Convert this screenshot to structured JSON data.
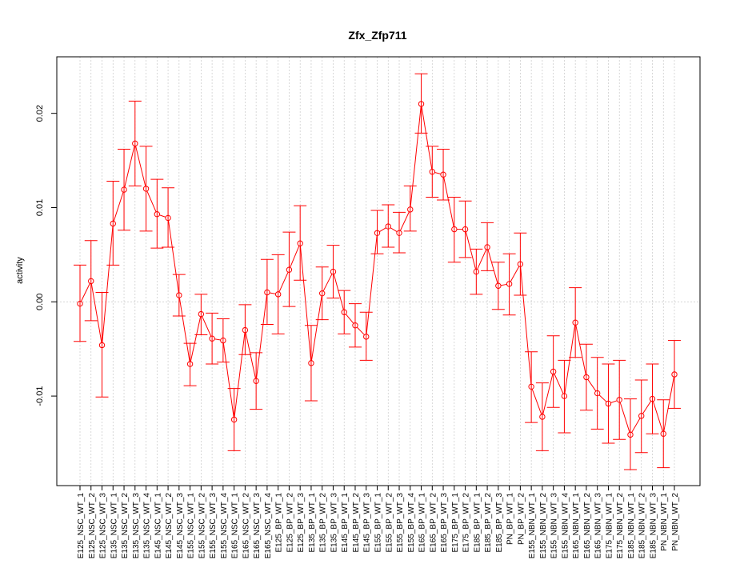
{
  "chart_data": {
    "type": "line",
    "title": "Zfx_Zfp711",
    "xlabel": "",
    "ylabel": "activity",
    "ylim": [
      -0.0195,
      0.026
    ],
    "yticks": [
      -0.01,
      0.0,
      0.01,
      0.02
    ],
    "ytick_labels": [
      "-0.01",
      "0.00",
      "0.01",
      "0.02"
    ],
    "grid": true,
    "colors": {
      "series": "#ff0000",
      "grid": "#c8c8c8",
      "axis": "#000000"
    },
    "categories": [
      "E125_NSC_WT_1",
      "E125_NSC_WT_2",
      "E125_NSC_WT_3",
      "E135_NSC_WT_1",
      "E135_NSC_WT_2",
      "E135_NSC_WT_3",
      "E135_NSC_WT_4",
      "E145_NSC_WT_1",
      "E145_NSC_WT_2",
      "E145_NSC_WT_3",
      "E155_NSC_WT_1",
      "E155_NSC_WT_2",
      "E155_NSC_WT_3",
      "E155_NSC_WT_4",
      "E165_NSC_WT_1",
      "E165_NSC_WT_2",
      "E165_NSC_WT_3",
      "E165_NSC_WT_4",
      "E125_BP_WT_1",
      "E125_BP_WT_2",
      "E125_BP_WT_3",
      "E135_BP_WT_1",
      "E135_BP_WT_2",
      "E135_BP_WT_3",
      "E145_BP_WT_1",
      "E145_BP_WT_2",
      "E145_BP_WT_3",
      "E155_BP_WT_1",
      "E155_BP_WT_2",
      "E155_BP_WT_3",
      "E155_BP_WT_4",
      "E165_BP_WT_1",
      "E165_BP_WT_2",
      "E165_BP_WT_3",
      "E175_BP_WT_1",
      "E175_BP_WT_2",
      "E185_BP_WT_1",
      "E185_BP_WT_2",
      "E185_BP_WT_3",
      "PN_BP_WT_1",
      "PN_BP_WT_2",
      "E155_NBN_WT_1",
      "E155_NBN_WT_2",
      "E155_NBN_WT_3",
      "E155_NBN_WT_4",
      "E165_NBN_WT_1",
      "E165_NBN_WT_2",
      "E165_NBN_WT_3",
      "E175_NBN_WT_1",
      "E175_NBN_WT_2",
      "E185_NBN_WT_1",
      "E185_NBN_WT_2",
      "E185_NBN_WT_3",
      "PN_NBN_WT_1",
      "PN_NBN_WT_2"
    ],
    "series": [
      {
        "values": [
          -0.0002,
          0.0022,
          -0.0046,
          0.0083,
          0.0119,
          0.0168,
          0.012,
          0.0093,
          0.0089,
          0.0007,
          -0.0066,
          -0.0013,
          -0.0039,
          -0.0041,
          -0.0125,
          -0.003,
          -0.0084,
          0.001,
          0.0008,
          0.0034,
          0.0062,
          -0.0065,
          0.0009,
          0.0032,
          -0.0011,
          -0.0025,
          -0.0037,
          0.0073,
          0.008,
          0.0073,
          0.0098,
          0.021,
          0.0138,
          0.0135,
          0.0077,
          0.0077,
          0.0032,
          0.0058,
          0.0017,
          0.0019,
          0.004,
          -0.009,
          -0.0122,
          -0.0074,
          -0.01,
          -0.0022,
          -0.008,
          -0.0097,
          -0.0108,
          -0.0104,
          -0.0141,
          -0.0121,
          -0.0103,
          -0.014,
          -0.0077
        ],
        "lower": [
          -0.0042,
          -0.002,
          -0.0101,
          0.0039,
          0.0076,
          0.0123,
          0.0075,
          0.0057,
          0.0058,
          -0.0015,
          -0.0089,
          -0.0035,
          -0.0066,
          -0.0064,
          -0.0158,
          -0.0056,
          -0.0114,
          -0.0024,
          -0.0034,
          -0.0005,
          0.0023,
          -0.0105,
          -0.0019,
          0.0004,
          -0.0034,
          -0.0048,
          -0.0062,
          0.0051,
          0.0058,
          0.0052,
          0.0075,
          0.0179,
          0.0111,
          0.0108,
          0.0042,
          0.0047,
          0.0008,
          0.0033,
          -0.0008,
          -0.0014,
          0.0007,
          -0.0128,
          -0.0158,
          -0.0112,
          -0.0139,
          -0.0059,
          -0.0115,
          -0.0135,
          -0.015,
          -0.0146,
          -0.0178,
          -0.016,
          -0.014,
          -0.0176,
          -0.0113
        ],
        "upper": [
          0.0039,
          0.0065,
          0.001,
          0.0128,
          0.0162,
          0.0213,
          0.0165,
          0.013,
          0.0121,
          0.0029,
          -0.0044,
          0.0008,
          -0.0012,
          -0.0018,
          -0.0092,
          -0.0003,
          -0.0054,
          0.0045,
          0.005,
          0.0074,
          0.0102,
          -0.0025,
          0.0037,
          0.006,
          0.0012,
          -0.0002,
          -0.0011,
          0.0097,
          0.0103,
          0.0095,
          0.0123,
          0.0242,
          0.0165,
          0.0162,
          0.0111,
          0.0107,
          0.0056,
          0.0084,
          0.0042,
          0.0051,
          0.0073,
          -0.0053,
          -0.0086,
          -0.0036,
          -0.0062,
          0.0015,
          -0.0045,
          -0.0059,
          -0.0066,
          -0.0062,
          -0.0103,
          -0.0083,
          -0.0066,
          -0.0104,
          -0.0041
        ]
      }
    ]
  }
}
